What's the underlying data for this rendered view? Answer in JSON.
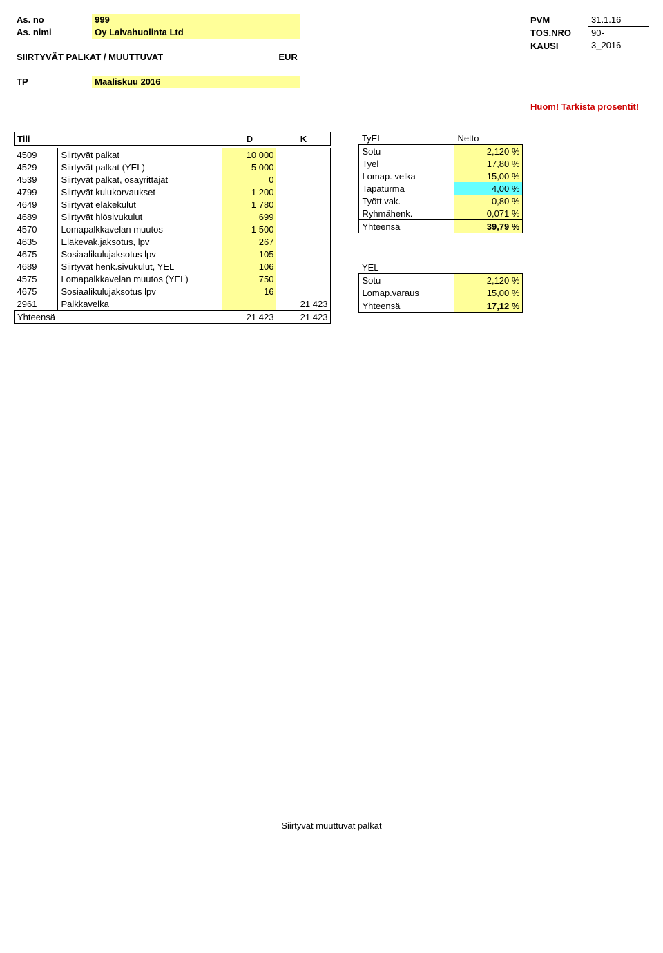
{
  "header": {
    "left": {
      "asno_label": "As. no",
      "asno_value": "999",
      "asnimi_label": "As. nimi",
      "asnimi_value": "Oy Laivahuolinta Ltd",
      "section_title": "SIIRTYVÄT PALKAT / MUUTTUVAT",
      "currency": "EUR",
      "tp_label": "TP",
      "tp_value": "Maaliskuu 2016"
    },
    "right": {
      "pvm_label": "PVM",
      "pvm_value": "31.1.16",
      "tosnro_label": "TOS.NRO",
      "tosnro_value": "90-",
      "kausi_label": "KAUSI",
      "kausi_value": "3_2016",
      "warning": "Huom! Tarkista prosentit!"
    }
  },
  "tili_table": {
    "title": "Tili",
    "col_d": "D",
    "col_k": "K",
    "rows": [
      {
        "acct": "4509",
        "desc": "Siirtyvät palkat",
        "d": "10 000",
        "k": ""
      },
      {
        "acct": "4529",
        "desc": "Siirtyvät palkat (YEL)",
        "d": "5 000",
        "k": ""
      },
      {
        "acct": "4539",
        "desc": "Siirtyvät palkat, osayrittäjät",
        "d": "0",
        "k": ""
      },
      {
        "acct": "4799",
        "desc": "Siirtyvät kulukorvaukset",
        "d": "1 200",
        "k": ""
      },
      {
        "acct": "4649",
        "desc": "Siirtyvät eläkekulut",
        "d": "1 780",
        "k": ""
      },
      {
        "acct": "4689",
        "desc": "Siirtyvät hlösivukulut",
        "d": "699",
        "k": ""
      },
      {
        "acct": "4570",
        "desc": "Lomapalkkavelan muutos",
        "d": "1 500",
        "k": ""
      },
      {
        "acct": "4635",
        "desc": "Eläkevak.jaksotus, lpv",
        "d": "267",
        "k": ""
      },
      {
        "acct": "4675",
        "desc": "Sosiaalikulujaksotus lpv",
        "d": "105",
        "k": ""
      },
      {
        "acct": "4689",
        "desc": "Siirtyvät henk.sivukulut, YEL",
        "d": "106",
        "k": ""
      },
      {
        "acct": "4575",
        "desc": "Lomapalkkavelan muutos (YEL)",
        "d": "750",
        "k": ""
      },
      {
        "acct": "4675",
        "desc": "Sosiaalikulujaksotus lpv",
        "d": "16",
        "k": ""
      },
      {
        "acct": "2961",
        "desc": "Palkkavelka",
        "d": "",
        "k": "21 423"
      }
    ],
    "total_label": "Yhteensä",
    "total_d": "21 423",
    "total_k": "21 423"
  },
  "tyel_block": {
    "title_left": "TyEL",
    "title_right": "Netto",
    "rows": [
      {
        "label": "Sotu",
        "val": "2,120 %",
        "hl": "yellow"
      },
      {
        "label": "Tyel",
        "val": "17,80 %",
        "hl": "yellow"
      },
      {
        "label": "Lomap. velka",
        "val": "15,00 %",
        "hl": "yellow"
      },
      {
        "label": "Tapaturma",
        "val": "4,00 %",
        "hl": "cyan"
      },
      {
        "label": "Tyött.vak.",
        "val": "0,80 %",
        "hl": "yellow"
      },
      {
        "label": "Ryhmähenk.",
        "val": "0,071 %",
        "hl": "yellow"
      }
    ],
    "total_label": "Yhteensä",
    "total_val": "39,79 %"
  },
  "yel_block": {
    "title": "YEL",
    "rows": [
      {
        "label": "Sotu",
        "val": "2,120 %",
        "hl": "yellow"
      },
      {
        "label": "Lomap.varaus",
        "val": "15,00 %",
        "hl": "yellow"
      }
    ],
    "total_label": "Yhteensä",
    "total_val": "17,12 %"
  },
  "footer": "Siirtyvät muuttuvat palkat",
  "colors": {
    "yellow": "#ffff99",
    "cyan": "#66ffff",
    "red": "#cc0000",
    "text": "#000000",
    "bg": "#ffffff"
  }
}
